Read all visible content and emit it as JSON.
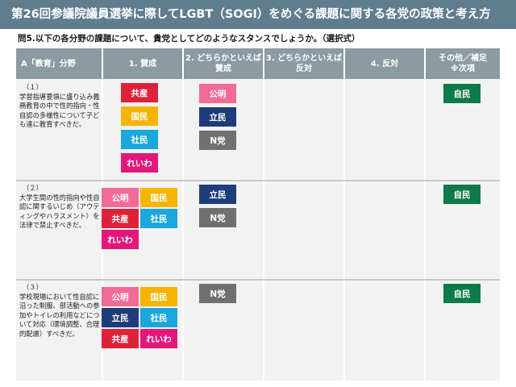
{
  "title": "第26回参議院議員選挙に際してLGBT（SOGI）をめぐる課題に関する各党の政策と考え方",
  "question": "問5.以下の各分野の課題について、貴党としてどのようなスタンスでしょうか。（選択式）",
  "headers": [
    "A「教育」分野",
    "1. 賛成",
    "2. どちらかといえば\n賛成",
    "3. どちらかといえば\n反対",
    "4. 反対",
    "その他／補足\n※次項"
  ],
  "party_colors": {
    "kyosan": "#e0213a",
    "kokumin": "#f5b400",
    "shamin": "#19a7dc",
    "reiwa": "#e3177a",
    "komei": "#f26b97",
    "rikken": "#1f3c7a",
    "nto": "#707070",
    "jimin": "#0d7a4a"
  },
  "rows": [
    {
      "num": "（１）",
      "text": "学習指導要領に盛り込み義務教育の中で性的指向・性自認の多様性について子ども達に教育すべきだ。",
      "col1": [
        {
          "label": "共産",
          "color": "kyosan"
        },
        {
          "label": "国民",
          "color": "kokumin"
        },
        {
          "label": "社民",
          "color": "shamin"
        },
        {
          "label": "れいわ",
          "color": "reiwa"
        }
      ],
      "col2": [
        {
          "label": "公明",
          "color": "komei"
        },
        {
          "label": "立民",
          "color": "rikken"
        },
        {
          "label": "N党",
          "color": "nto"
        }
      ],
      "col5": [
        {
          "label": "自民",
          "color": "jimin"
        }
      ]
    },
    {
      "num": "（２）",
      "text": "大学生間の性的指向や性自認に関するいじめ（アウティングやハラスメント）を法律で禁止すべきだ。",
      "col1": [
        {
          "label": "公明",
          "color": "komei"
        },
        {
          "label": "国民",
          "color": "kokumin"
        },
        {
          "label": "共産",
          "color": "kyosan"
        },
        {
          "label": "社民",
          "color": "shamin"
        },
        {
          "label": "れいわ",
          "color": "reiwa"
        }
      ],
      "col2": [
        {
          "label": "立民",
          "color": "rikken"
        },
        {
          "label": "N党",
          "color": "nto"
        }
      ],
      "col5": [
        {
          "label": "自民",
          "color": "jimin"
        }
      ]
    },
    {
      "num": "（３）",
      "text": "学校現場において性自認に沿った制服、部活動への参加やトイレの利用などについて対応（環境調整、合理的配慮）すべきだ。",
      "col1": [
        {
          "label": "公明",
          "color": "komei"
        },
        {
          "label": "国民",
          "color": "kokumin"
        },
        {
          "label": "立民",
          "color": "rikken"
        },
        {
          "label": "社民",
          "color": "shamin"
        },
        {
          "label": "共産",
          "color": "kyosan"
        },
        {
          "label": "れいわ",
          "color": "reiwa"
        }
      ],
      "col2": [
        {
          "label": "N党",
          "color": "nto"
        }
      ],
      "col5": [
        {
          "label": "自民",
          "color": "jimin"
        }
      ]
    }
  ]
}
